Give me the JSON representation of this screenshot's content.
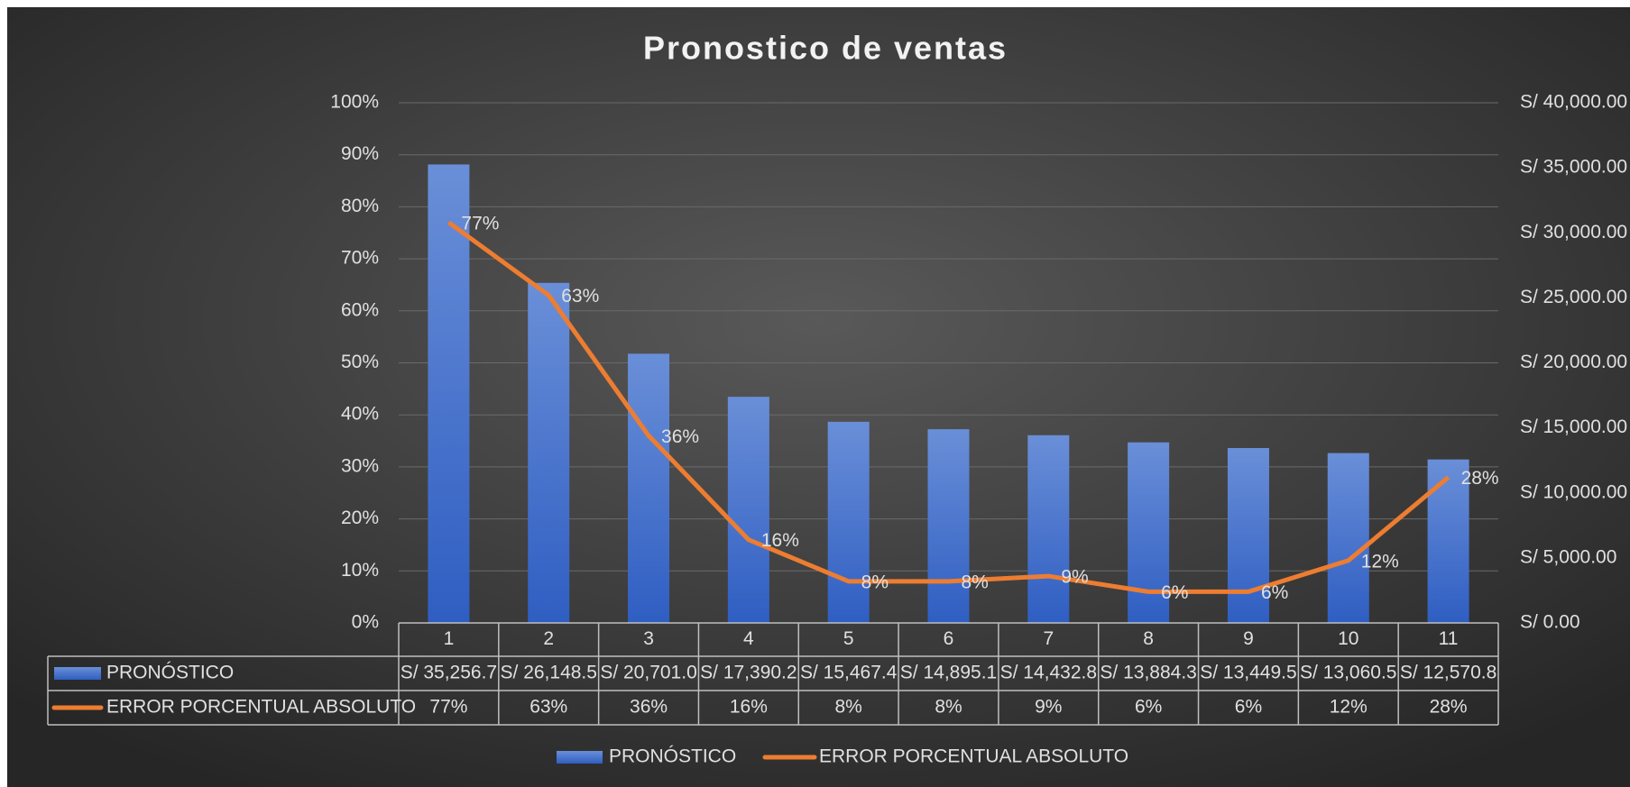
{
  "chart_data": {
    "type": "bar_line",
    "title": "Pronostico de ventas",
    "categories": [
      "1",
      "2",
      "3",
      "4",
      "5",
      "6",
      "7",
      "8",
      "9",
      "10",
      "11"
    ],
    "series": [
      {
        "name": "PRONÓSTICO",
        "type": "bar",
        "axis": "y2",
        "color": "#4472c4",
        "values": [
          35256.7,
          26148.5,
          20701.0,
          17390.2,
          15467.4,
          14895.1,
          14432.8,
          13884.3,
          13449.5,
          13060.5,
          12570.8
        ],
        "value_labels": [
          "S/ 35,256.7",
          "S/ 26,148.5",
          "S/ 20,701.0",
          "S/ 17,390.2",
          "S/ 15,467.4",
          "S/ 14,895.1",
          "S/ 14,432.8",
          "S/ 13,884.3",
          "S/ 13,449.5",
          "S/ 13,060.5",
          "S/ 12,570.8"
        ]
      },
      {
        "name": "ERROR PORCENTUAL ABSOLUTO",
        "type": "line",
        "axis": "y",
        "color": "#ed7d31",
        "values": [
          77,
          63,
          36,
          16,
          8,
          8,
          9,
          6,
          6,
          12,
          28
        ],
        "value_labels": [
          "77%",
          "63%",
          "36%",
          "16%",
          "8%",
          "8%",
          "9%",
          "6%",
          "6%",
          "12%",
          "28%"
        ]
      }
    ],
    "ylim": [
      0,
      100
    ],
    "yticks": [
      {
        "value": 0,
        "label": "0%"
      },
      {
        "value": 10,
        "label": "10%"
      },
      {
        "value": 20,
        "label": "20%"
      },
      {
        "value": 30,
        "label": "30%"
      },
      {
        "value": 40,
        "label": "40%"
      },
      {
        "value": 50,
        "label": "50%"
      },
      {
        "value": 60,
        "label": "60%"
      },
      {
        "value": 70,
        "label": "70%"
      },
      {
        "value": 80,
        "label": "80%"
      },
      {
        "value": 90,
        "label": "90%"
      },
      {
        "value": 100,
        "label": "100%"
      }
    ],
    "y2lim": [
      0,
      40000
    ],
    "y2ticks": [
      {
        "value": 0,
        "label": "S/ 0.00"
      },
      {
        "value": 5000,
        "label": "S/ 5,000.00"
      },
      {
        "value": 10000,
        "label": "S/ 10,000.00"
      },
      {
        "value": 15000,
        "label": "S/ 15,000.00"
      },
      {
        "value": 20000,
        "label": "S/ 20,000.00"
      },
      {
        "value": 25000,
        "label": "S/ 25,000.00"
      },
      {
        "value": 30000,
        "label": "S/ 30,000.00"
      },
      {
        "value": 35000,
        "label": "S/ 35,000.00"
      },
      {
        "value": 40000,
        "label": "S/ 40,000.00"
      }
    ],
    "grid": true,
    "legend": "bottom",
    "data_table": true
  }
}
